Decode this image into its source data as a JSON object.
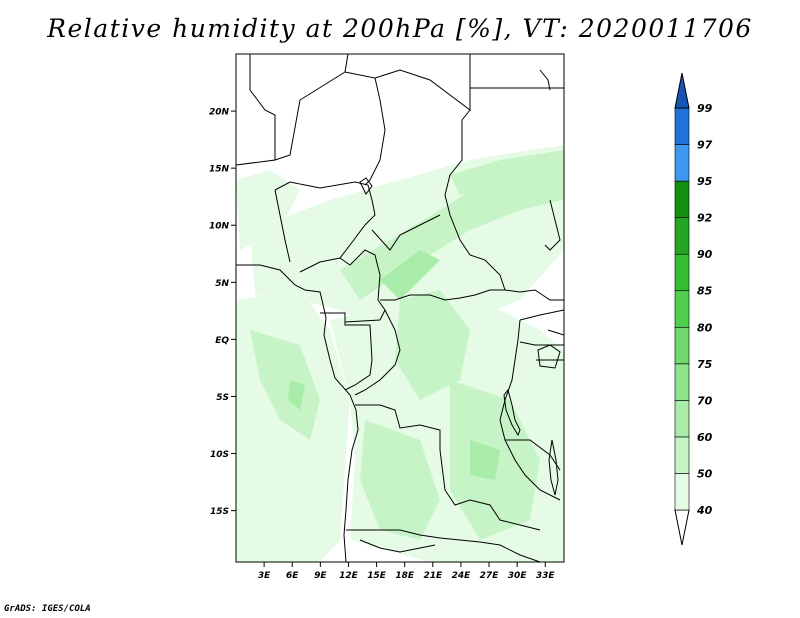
{
  "title": "Relative humidity at 200hPa [%], VT: 2020011706",
  "credit": "GrADS: IGES/COLA",
  "map": {
    "lat_labels": [
      "20N",
      "15N",
      "10N",
      "5N",
      "EQ",
      "5S",
      "10S",
      "15S"
    ],
    "lat_values": [
      20,
      15,
      10,
      5,
      0,
      -5,
      -10,
      -15
    ],
    "lon_labels": [
      "3E",
      "6E",
      "9E",
      "12E",
      "15E",
      "18E",
      "21E",
      "24E",
      "27E",
      "30E",
      "33E"
    ],
    "lon_values": [
      3,
      6,
      9,
      12,
      15,
      18,
      21,
      24,
      27,
      30,
      33
    ],
    "lat_range": [
      -19.5,
      25
    ],
    "lon_range": [
      0,
      35
    ]
  },
  "colorbar": {
    "labels": [
      "40",
      "50",
      "60",
      "70",
      "75",
      "80",
      "85",
      "90",
      "92",
      "95",
      "97",
      "99"
    ],
    "colors": [
      "#ffffff",
      "#e6fbe6",
      "#c7f4c6",
      "#a9eba8",
      "#8fe38d",
      "#6fd96d",
      "#4fcf4d",
      "#35bd33",
      "#24a622",
      "#138f12",
      "#3d98f0",
      "#1f72d9",
      "#1655b3"
    ]
  },
  "humidity_colors": {
    "light": "#e6fbe6",
    "mid": "#c7f4c6",
    "dark": "#a9eba8"
  }
}
